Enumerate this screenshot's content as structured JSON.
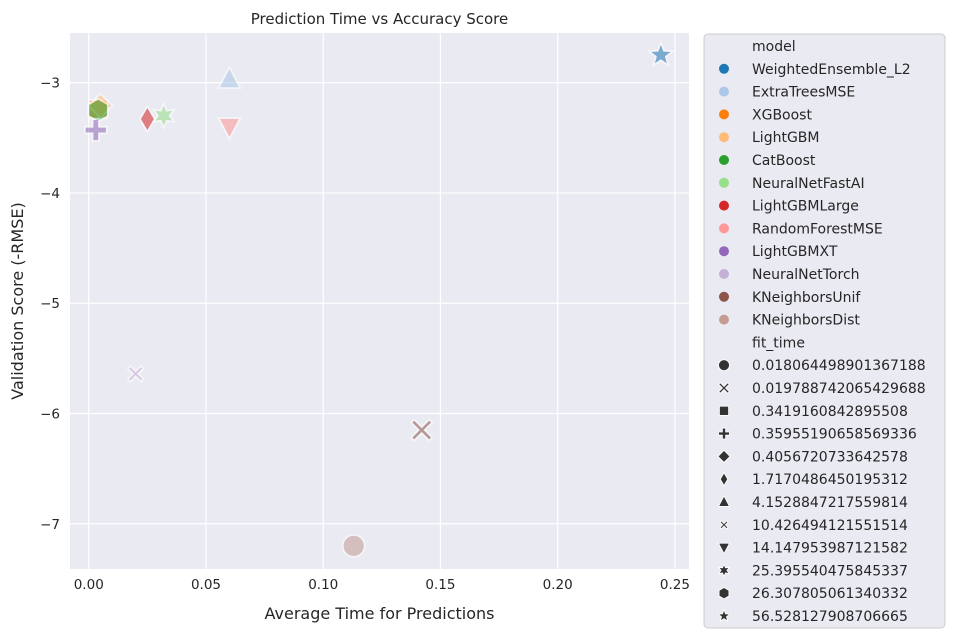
{
  "chart_data": {
    "type": "scatter",
    "title": "Prediction Time vs Accuracy Score",
    "xlabel": "Average Time for Predictions",
    "ylabel": "Validation Score (-RMSE)",
    "xlim": [
      -0.008,
      0.256
    ],
    "ylim": [
      -7.41,
      -2.55
    ],
    "x_ticks": [
      {
        "value": 0.0,
        "label": "0.00"
      },
      {
        "value": 0.05,
        "label": "0.05"
      },
      {
        "value": 0.1,
        "label": "0.10"
      },
      {
        "value": 0.15,
        "label": "0.15"
      },
      {
        "value": 0.2,
        "label": "0.20"
      },
      {
        "value": 0.25,
        "label": "0.25"
      }
    ],
    "y_ticks": [
      {
        "value": -3,
        "label": "−3"
      },
      {
        "value": -4,
        "label": "−4"
      },
      {
        "value": -5,
        "label": "−5"
      },
      {
        "value": -6,
        "label": "−6"
      },
      {
        "value": -7,
        "label": "−7"
      }
    ],
    "grid": true,
    "legend_position": "outside-right",
    "legend": {
      "hue_title": "model",
      "hue_entries": [
        {
          "label": "WeightedEnsemble_L2",
          "color": "#1f77b4"
        },
        {
          "label": "ExtraTreesMSE",
          "color": "#aec7e8"
        },
        {
          "label": "XGBoost",
          "color": "#ff7f0e"
        },
        {
          "label": "LightGBM",
          "color": "#ffbb78"
        },
        {
          "label": "CatBoost",
          "color": "#2ca02c"
        },
        {
          "label": "NeuralNetFastAI",
          "color": "#98df8a"
        },
        {
          "label": "LightGBMLarge",
          "color": "#d62728"
        },
        {
          "label": "RandomForestMSE",
          "color": "#ff9896"
        },
        {
          "label": "LightGBMXT",
          "color": "#9467bd"
        },
        {
          "label": "NeuralNetTorch",
          "color": "#c5b0d5"
        },
        {
          "label": "KNeighborsUnif",
          "color": "#8c564b"
        },
        {
          "label": "KNeighborsDist",
          "color": "#c49c94"
        }
      ],
      "style_title": "fit_time",
      "style_entries": [
        {
          "label": "0.018064498901367188",
          "marker": "circle"
        },
        {
          "label": "0.019788742065429688",
          "marker": "x"
        },
        {
          "label": "0.3419160842895508",
          "marker": "square"
        },
        {
          "label": "0.35955190658569336",
          "marker": "plus"
        },
        {
          "label": "0.4056720733642578",
          "marker": "diamond"
        },
        {
          "label": "1.7170486450195312",
          "marker": "thin-diamond"
        },
        {
          "label": "4.1528847217559814",
          "marker": "triangle-up"
        },
        {
          "label": "10.426494121551514",
          "marker": "small-x"
        },
        {
          "label": "14.147953987121582",
          "marker": "triangle-down"
        },
        {
          "label": "25.395540475845337",
          "marker": "star6"
        },
        {
          "label": "26.307805061340332",
          "marker": "hexagon"
        },
        {
          "label": "56.528127908706665",
          "marker": "star5"
        }
      ]
    },
    "points": [
      {
        "model": "WeightedEnsemble_L2",
        "x": 0.244,
        "y": -2.75,
        "marker": "star5",
        "color": "#1f77b4"
      },
      {
        "model": "ExtraTreesMSE",
        "x": 0.06,
        "y": -2.97,
        "marker": "triangle-up",
        "color": "#aec7e8"
      },
      {
        "model": "XGBoost",
        "x": 0.004,
        "y": -3.24,
        "marker": "square",
        "color": "#ff7f0e"
      },
      {
        "model": "LightGBM",
        "x": 0.005,
        "y": -3.21,
        "marker": "diamond",
        "color": "#ffbb78"
      },
      {
        "model": "NeuralNetFastAI",
        "x": 0.032,
        "y": -3.3,
        "marker": "star6",
        "color": "#98df8a"
      },
      {
        "model": "CatBoost",
        "x": 0.004,
        "y": -3.25,
        "marker": "hexagon",
        "color": "#2ca02c"
      },
      {
        "model": "LightGBMLarge",
        "x": 0.025,
        "y": -3.33,
        "marker": "thin-diamond",
        "color": "#d62728"
      },
      {
        "model": "RandomForestMSE",
        "x": 0.06,
        "y": -3.4,
        "marker": "triangle-down",
        "color": "#ff9896"
      },
      {
        "model": "LightGBMXT",
        "x": 0.003,
        "y": -3.43,
        "marker": "plus",
        "color": "#9467bd"
      },
      {
        "model": "NeuralNetTorch",
        "x": 0.02,
        "y": -5.64,
        "marker": "small-x",
        "color": "#c5b0d5"
      },
      {
        "model": "KNeighborsUnif",
        "x": 0.142,
        "y": -6.15,
        "marker": "x",
        "color": "#8c564b"
      },
      {
        "model": "KNeighborsDist",
        "x": 0.113,
        "y": -7.2,
        "marker": "circle",
        "color": "#c49c94"
      }
    ]
  }
}
